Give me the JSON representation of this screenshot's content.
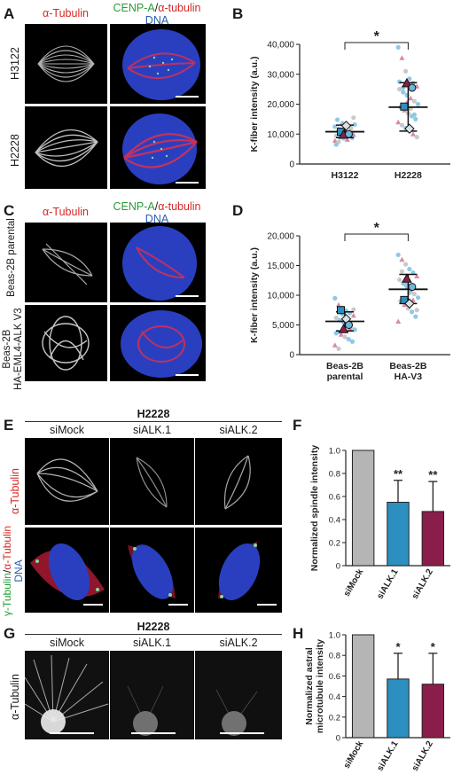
{
  "panels": {
    "A": {
      "label": "A",
      "col1": "α-Tubulin",
      "col2a": "CENP-A",
      "col2sep": "/",
      "col2b": "α-tubulin",
      "col2c": "DNA",
      "row1": "H3122",
      "row2": "H2228"
    },
    "B": {
      "label": "B",
      "ylabel": "K-fiber intensity (a.u.)",
      "sig": "*"
    },
    "C": {
      "label": "C",
      "col1": "α-Tubulin",
      "col2a": "CENP-A",
      "col2sep": "/",
      "col2b": "α-tubulin",
      "col2c": "DNA",
      "row1": "Beas-2B parental",
      "row2a": "Beas-2B",
      "row2b": "HA-EML4-ALK V3"
    },
    "D": {
      "label": "D",
      "ylabel": "K-fiber intensity (a.u.)",
      "sig": "*"
    },
    "E": {
      "label": "E",
      "title": "H2228",
      "cols": [
        "siMock",
        "siALK.1",
        "siALK.2"
      ],
      "row1": "α-Tubulin",
      "row2a": "γ-Tubulin",
      "row2sep": "/",
      "row2b": "α-Tubulin",
      "row2c": "DNA"
    },
    "F": {
      "label": "F",
      "ylabel": "Normalized spindle intensity",
      "sig": [
        "",
        "**",
        "**"
      ]
    },
    "G": {
      "label": "G",
      "title": "H2228",
      "cols": [
        "siMock",
        "siALK.1",
        "siALK.2"
      ],
      "row1": "α-Tubulin"
    },
    "H": {
      "label": "H",
      "ylabel_line1": "Normalized astral",
      "ylabel_line2": "microtubule intensity",
      "sig": [
        "",
        "*",
        "*"
      ]
    }
  },
  "colors": {
    "light_blue": "#8ec9e6",
    "pink": "#d88aa6",
    "grey_dot": "#c9c9c9",
    "teal": "#2c8fc0",
    "maroon": "#8a1e4b",
    "bar_grey": "#b5b5b5",
    "bar_blue": "#2c8fc0",
    "bar_maroon": "#8a1e4b"
  },
  "chart_data": [
    {
      "id": "B",
      "type": "scatter",
      "categories": [
        "H3122",
        "H2228"
      ],
      "ylim": [
        0,
        40000
      ],
      "yticks": [
        0,
        10000,
        20000,
        30000,
        40000
      ],
      "ytick_labels": [
        "0",
        "10,000",
        "20,000",
        "30,000",
        "40,000"
      ],
      "mean": [
        10800,
        19000
      ],
      "err": [
        [
          8800,
          13000
        ],
        [
          11000,
          27200
        ]
      ],
      "replicate_means": [
        [
          10800,
          9800,
          12800,
          10000
        ],
        [
          19200,
          27000,
          11800,
          25500
        ]
      ],
      "points": [
        [
          12500,
          11800,
          11200,
          10600,
          10200,
          9800,
          9400,
          9000,
          8600,
          8200,
          12000,
          13200,
          14800,
          11500,
          10400,
          9600,
          8800,
          7800,
          7400,
          13600,
          10000,
          11000,
          15500,
          6500,
          9200
        ],
        [
          39000,
          35500,
          31000,
          28500,
          27000,
          26000,
          25000,
          24000,
          23000,
          22000,
          21000,
          20000,
          19000,
          18000,
          17000,
          16000,
          15000,
          14000,
          13000,
          12000,
          11000,
          10000,
          9000,
          27500,
          25500,
          20500,
          18500,
          16500
        ]
      ]
    },
    {
      "id": "D",
      "type": "scatter",
      "categories": [
        "Beas-2B\nparental",
        "Beas-2B\nHA-V3"
      ],
      "ylim": [
        0,
        20000
      ],
      "yticks": [
        0,
        5000,
        10000,
        15000,
        20000
      ],
      "ytick_labels": [
        "0",
        "5,000",
        "10,000",
        "15,000",
        "20,000"
      ],
      "mean": [
        5600,
        11000
      ],
      "err": [
        [
          4000,
          7200
        ],
        [
          8600,
          13500
        ]
      ],
      "replicate_means": [
        [
          7500,
          4300,
          6000,
          5000
        ],
        [
          9200,
          12800,
          8600,
          11400
        ]
      ],
      "points": [
        [
          9500,
          8400,
          7900,
          7400,
          7000,
          6600,
          6200,
          5800,
          5400,
          5000,
          4600,
          4200,
          3800,
          3400,
          3000,
          2600,
          2200,
          1600,
          1000,
          6800,
          5200,
          4400,
          7600,
          3600
        ],
        [
          16800,
          16000,
          15200,
          14400,
          13800,
          13200,
          12600,
          12000,
          11400,
          10800,
          10200,
          9600,
          9000,
          8400,
          7800,
          7200,
          6400,
          5600,
          14000,
          11800,
          10400,
          9200,
          7500
        ]
      ]
    },
    {
      "id": "F",
      "type": "bar",
      "categories": [
        "siMock",
        "siALK.1",
        "siALK.2"
      ],
      "values": [
        1.0,
        0.55,
        0.47
      ],
      "err": [
        0,
        0.19,
        0.26
      ],
      "ylim": [
        0,
        1.0
      ],
      "yticks": [
        0,
        0.2,
        0.4,
        0.6,
        0.8,
        1.0
      ],
      "ytick_labels": [
        "0",
        "0.2",
        "0.4",
        "0.6",
        "0.8",
        "1.0"
      ]
    },
    {
      "id": "H",
      "type": "bar",
      "categories": [
        "siMock",
        "siALK.1",
        "siALK.2"
      ],
      "values": [
        1.0,
        0.57,
        0.52
      ],
      "err": [
        0,
        0.25,
        0.3
      ],
      "ylim": [
        0,
        1.0
      ],
      "yticks": [
        0,
        0.2,
        0.4,
        0.6,
        0.8,
        1.0
      ],
      "ytick_labels": [
        "0",
        "0.2",
        "0.4",
        "0.6",
        "0.8",
        "1.0"
      ]
    }
  ]
}
